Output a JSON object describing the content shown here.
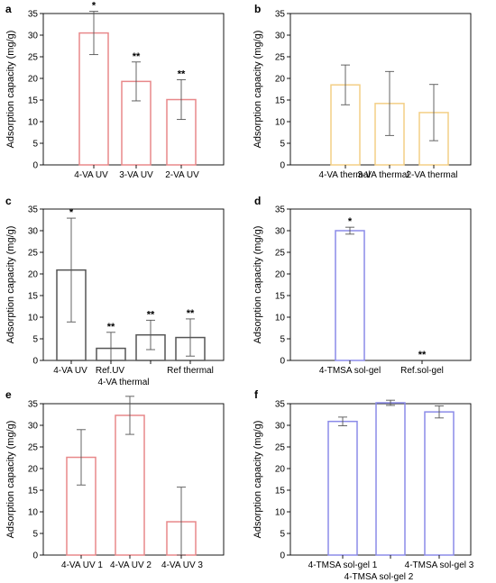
{
  "chart_data": [
    {
      "panel": "a",
      "type": "bar",
      "ylabel": "Adsorption capacity (mg/g)",
      "ylim": [
        0,
        35
      ],
      "yticks": [
        0,
        5,
        10,
        15,
        20,
        25,
        30,
        35
      ],
      "bar_color": "#e8888a",
      "categories": [
        {
          "label": "4-VA UV",
          "value": 30.5,
          "error": 5.0,
          "sig": "*"
        },
        {
          "label": "3-VA UV",
          "value": 19.3,
          "error": 4.5,
          "sig": "**"
        },
        {
          "label": "2-VA UV",
          "value": 15.1,
          "error": 4.6,
          "sig": "**"
        }
      ]
    },
    {
      "panel": "b",
      "type": "bar",
      "ylabel": "Adsorption capacity (mg/g)",
      "ylim": [
        0,
        35
      ],
      "yticks": [
        0,
        5,
        10,
        15,
        20,
        25,
        30,
        35
      ],
      "bar_color": "#f3cf86",
      "categories": [
        {
          "label": "4-VA thermal",
          "value": 18.5,
          "error": 4.6,
          "sig": ""
        },
        {
          "label": "3-VA thermal",
          "value": 14.2,
          "error": 7.4,
          "sig": ""
        },
        {
          "label": "2-VA thermal",
          "value": 12.1,
          "error": 6.5,
          "sig": ""
        }
      ]
    },
    {
      "panel": "c",
      "type": "bar",
      "ylabel": "Adsorption capacity (mg/g)",
      "ylim": [
        0,
        35
      ],
      "yticks": [
        0,
        5,
        10,
        15,
        20,
        25,
        30,
        35
      ],
      "bar_color": "#555555",
      "categories": [
        {
          "label": "4-VA UV",
          "value": 20.9,
          "error": 12.0,
          "sig": "*"
        },
        {
          "label": "Ref.UV",
          "value": 2.8,
          "error": 3.7,
          "sig": "**"
        },
        {
          "label": "4-VA thermal",
          "value": 5.9,
          "error": 3.4,
          "sig": "**"
        },
        {
          "label": "Ref thermal",
          "value": 5.3,
          "error": 4.3,
          "sig": "**"
        }
      ]
    },
    {
      "panel": "d",
      "type": "bar",
      "ylabel": "Adsorption capacity (mg/g)",
      "ylim": [
        0,
        35
      ],
      "yticks": [
        0,
        5,
        10,
        15,
        20,
        25,
        30,
        35
      ],
      "bar_color": "#8b8be8",
      "categories": [
        {
          "label": "4-TMSA sol-gel",
          "value": 30.0,
          "error": 0.8,
          "sig": "*"
        },
        {
          "label": "Ref.sol-gel",
          "value": 0.0,
          "error": 0.0,
          "sig": "**"
        }
      ]
    },
    {
      "panel": "e",
      "type": "bar",
      "ylabel": "Adsorption capacity (mg/g)",
      "ylim": [
        0,
        35
      ],
      "yticks": [
        0,
        5,
        10,
        15,
        20,
        25,
        30,
        35
      ],
      "bar_color": "#e8888a",
      "categories": [
        {
          "label": "4-VA UV 1",
          "value": 22.6,
          "error": 6.4,
          "sig": ""
        },
        {
          "label": "4-VA UV 2",
          "value": 32.3,
          "error": 4.4,
          "sig": ""
        },
        {
          "label": "4-VA UV 3",
          "value": 7.7,
          "error": 8.0,
          "sig": ""
        }
      ]
    },
    {
      "panel": "f",
      "type": "bar",
      "ylabel": "Adsorption capacity (mg/g)",
      "ylim": [
        0,
        35
      ],
      "yticks": [
        0,
        5,
        10,
        15,
        20,
        25,
        30,
        35
      ],
      "bar_color": "#8b8be8",
      "categories": [
        {
          "label": "4-TMSA sol-gel 1",
          "value": 30.9,
          "error": 1.0,
          "sig": ""
        },
        {
          "label": "4-TMSA sol-gel 2",
          "value": 35.2,
          "error": 0.6,
          "sig": ""
        },
        {
          "label": "4-TMSA sol-gel 3",
          "value": 33.1,
          "error": 1.4,
          "sig": ""
        }
      ]
    }
  ]
}
